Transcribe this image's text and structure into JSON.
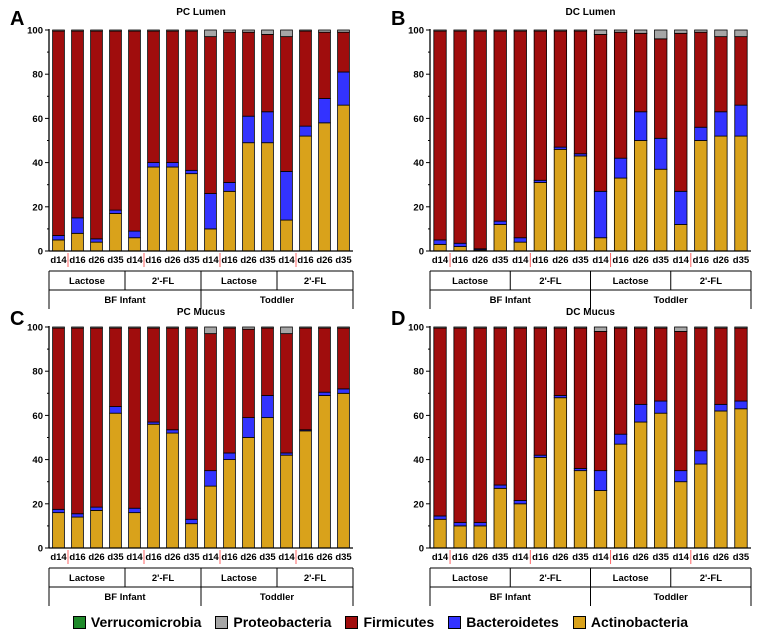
{
  "colors": {
    "Verrucomicrobia": "#1f8a2a",
    "Proteobacteria": "#a6a6a6",
    "Firmicutes": "#a00d0d",
    "Bacteroidetes": "#3333ff",
    "Actinobacteria": "#d9a21b",
    "marker": "#ff6666"
  },
  "legend": [
    "Verrucomicrobia",
    "Proteobacteria",
    "Firmicutes",
    "Bacteroidetes",
    "Actinobacteria"
  ],
  "chart_data": [
    {
      "panel_letter": "A",
      "title": "PC Lumen",
      "type": "bar",
      "stacked": true,
      "ylim": [
        0,
        100
      ],
      "yticks": [
        "0",
        "20",
        "40",
        "60",
        "80",
        "100"
      ],
      "categories": [
        "d14",
        "d16",
        "d26",
        "d35",
        "d14",
        "d16",
        "d26",
        "d35",
        "d14",
        "d16",
        "d26",
        "d35",
        "d14",
        "d16",
        "d26",
        "d35"
      ],
      "groups": [
        "Lactose",
        "2'-FL",
        "Lactose",
        "2'-FL"
      ],
      "supergroups": [
        "BF Infant",
        "Toddler"
      ],
      "series": [
        {
          "name": "Actinobacteria",
          "values": [
            5,
            8,
            4,
            17,
            6,
            38,
            38,
            35,
            10,
            27,
            49,
            49,
            14,
            52,
            58,
            66
          ]
        },
        {
          "name": "Bacteroidetes",
          "values": [
            2,
            7,
            1.5,
            1.5,
            3,
            2,
            2,
            1.5,
            16,
            4,
            12,
            14,
            22,
            4.5,
            11,
            15
          ]
        },
        {
          "name": "Firmicutes",
          "values": [
            92.5,
            84.5,
            94,
            81,
            90.5,
            59.5,
            59.5,
            63,
            71,
            68,
            38,
            35,
            61,
            43,
            30,
            18
          ]
        },
        {
          "name": "Proteobacteria",
          "values": [
            0.5,
            0.5,
            0.5,
            0.5,
            0.5,
            0.5,
            0.5,
            0.5,
            3,
            1,
            1,
            2,
            3,
            0.5,
            1,
            1
          ]
        },
        {
          "name": "Verrucomicrobia",
          "values": [
            0,
            0,
            0,
            0,
            0,
            0,
            0,
            0,
            0,
            0,
            0,
            0,
            0,
            0,
            0,
            0
          ]
        }
      ]
    },
    {
      "panel_letter": "B",
      "title": "DC Lumen",
      "type": "bar",
      "stacked": true,
      "ylim": [
        0,
        100
      ],
      "yticks": [
        "0",
        "20",
        "40",
        "60",
        "80",
        "100"
      ],
      "categories": [
        "d14",
        "d16",
        "d26",
        "d35",
        "d14",
        "d16",
        "d26",
        "d35",
        "d14",
        "d16",
        "d26",
        "d35",
        "d14",
        "d16",
        "d26",
        "d35"
      ],
      "groups": [
        "Lactose",
        "2'-FL",
        "Lactose",
        "2'-FL"
      ],
      "supergroups": [
        "BF Infant",
        "Toddler"
      ],
      "series": [
        {
          "name": "Actinobacteria",
          "values": [
            3,
            2,
            0.5,
            12,
            4,
            31,
            46,
            43,
            6,
            33,
            50,
            37,
            12,
            50,
            52,
            52
          ]
        },
        {
          "name": "Bacteroidetes",
          "values": [
            2,
            1.5,
            0.5,
            1.5,
            2,
            1,
            1,
            1,
            21,
            9,
            13,
            14,
            15,
            6,
            11,
            14
          ]
        },
        {
          "name": "Firmicutes",
          "values": [
            94.5,
            96,
            98.5,
            86,
            93.5,
            67.5,
            52.5,
            55.5,
            71,
            57,
            35.5,
            45,
            71.5,
            43,
            34,
            31
          ]
        },
        {
          "name": "Proteobacteria",
          "values": [
            0.5,
            0.5,
            0.5,
            0.5,
            0.5,
            0.5,
            0.5,
            0.5,
            2,
            1,
            1.5,
            4,
            1.5,
            1,
            3,
            3
          ]
        },
        {
          "name": "Verrucomicrobia",
          "values": [
            0,
            0,
            0,
            0,
            0,
            0,
            0,
            0,
            0,
            0,
            0,
            0,
            0,
            0,
            0,
            0
          ]
        }
      ]
    },
    {
      "panel_letter": "C",
      "title": "PC Mucus",
      "type": "bar",
      "stacked": true,
      "ylim": [
        0,
        100
      ],
      "yticks": [
        "0",
        "20",
        "40",
        "60",
        "80",
        "100"
      ],
      "categories": [
        "d14",
        "d16",
        "d26",
        "d35",
        "d14",
        "d16",
        "d26",
        "d35",
        "d14",
        "d16",
        "d26",
        "d35",
        "d14",
        "d16",
        "d26",
        "d35"
      ],
      "groups": [
        "Lactose",
        "2'-FL",
        "Lactose",
        "2'-FL"
      ],
      "supergroups": [
        "BF Infant",
        "Toddler"
      ],
      "series": [
        {
          "name": "Actinobacteria",
          "values": [
            16,
            14,
            17,
            61,
            16,
            56,
            52,
            11,
            28,
            40,
            50,
            59,
            42,
            53,
            69,
            70
          ]
        },
        {
          "name": "Bacteroidetes",
          "values": [
            1.5,
            1.5,
            1.5,
            3,
            2,
            1,
            1.5,
            2,
            7,
            3,
            9,
            10,
            1,
            0.5,
            1.5,
            2
          ]
        },
        {
          "name": "Firmicutes",
          "values": [
            82,
            84,
            81,
            35.5,
            81.5,
            42.5,
            46,
            86.5,
            62,
            56.5,
            40,
            30.5,
            54,
            46,
            29,
            27.5
          ]
        },
        {
          "name": "Proteobacteria",
          "values": [
            0.5,
            0.5,
            0.5,
            0.5,
            0.5,
            0.5,
            0.5,
            0.5,
            3,
            0.5,
            1,
            0.5,
            3,
            0.5,
            0.5,
            0.5
          ]
        },
        {
          "name": "Verrucomicrobia",
          "values": [
            0,
            0,
            0,
            0,
            0,
            0,
            0,
            0,
            0,
            0,
            0,
            0,
            0,
            0,
            0,
            0
          ]
        }
      ]
    },
    {
      "panel_letter": "D",
      "title": "DC Mucus",
      "type": "bar",
      "stacked": true,
      "ylim": [
        0,
        100
      ],
      "yticks": [
        "0",
        "20",
        "40",
        "60",
        "80",
        "100"
      ],
      "categories": [
        "d14",
        "d16",
        "d26",
        "d35",
        "d14",
        "d16",
        "d26",
        "d35",
        "d14",
        "d16",
        "d26",
        "d35",
        "d14",
        "d16",
        "d26",
        "d35"
      ],
      "groups": [
        "Lactose",
        "2'-FL",
        "Lactose",
        "2'-FL"
      ],
      "supergroups": [
        "BF Infant",
        "Toddler"
      ],
      "series": [
        {
          "name": "Actinobacteria",
          "values": [
            13,
            10,
            10,
            27,
            20,
            41,
            68,
            35,
            26,
            47,
            57,
            61,
            30,
            38,
            62,
            63
          ]
        },
        {
          "name": "Bacteroidetes",
          "values": [
            1.5,
            1.5,
            1.5,
            1.5,
            1.5,
            1,
            1,
            1,
            9,
            4.5,
            8,
            5.5,
            5,
            6,
            3,
            3.5
          ]
        },
        {
          "name": "Firmicutes",
          "values": [
            85,
            88,
            88,
            71,
            78,
            57.5,
            30.5,
            63.5,
            63,
            48,
            34.5,
            33,
            63,
            55.5,
            34.5,
            33
          ]
        },
        {
          "name": "Proteobacteria",
          "values": [
            0.5,
            0.5,
            0.5,
            0.5,
            0.5,
            0.5,
            0.5,
            0.5,
            2,
            0.5,
            0.5,
            0.5,
            2,
            0.5,
            0.5,
            0.5
          ]
        },
        {
          "name": "Verrucomicrobia",
          "values": [
            0,
            0,
            0,
            0,
            0,
            0,
            0,
            0,
            0,
            0,
            0,
            0,
            0,
            0,
            0,
            0
          ]
        }
      ]
    }
  ]
}
